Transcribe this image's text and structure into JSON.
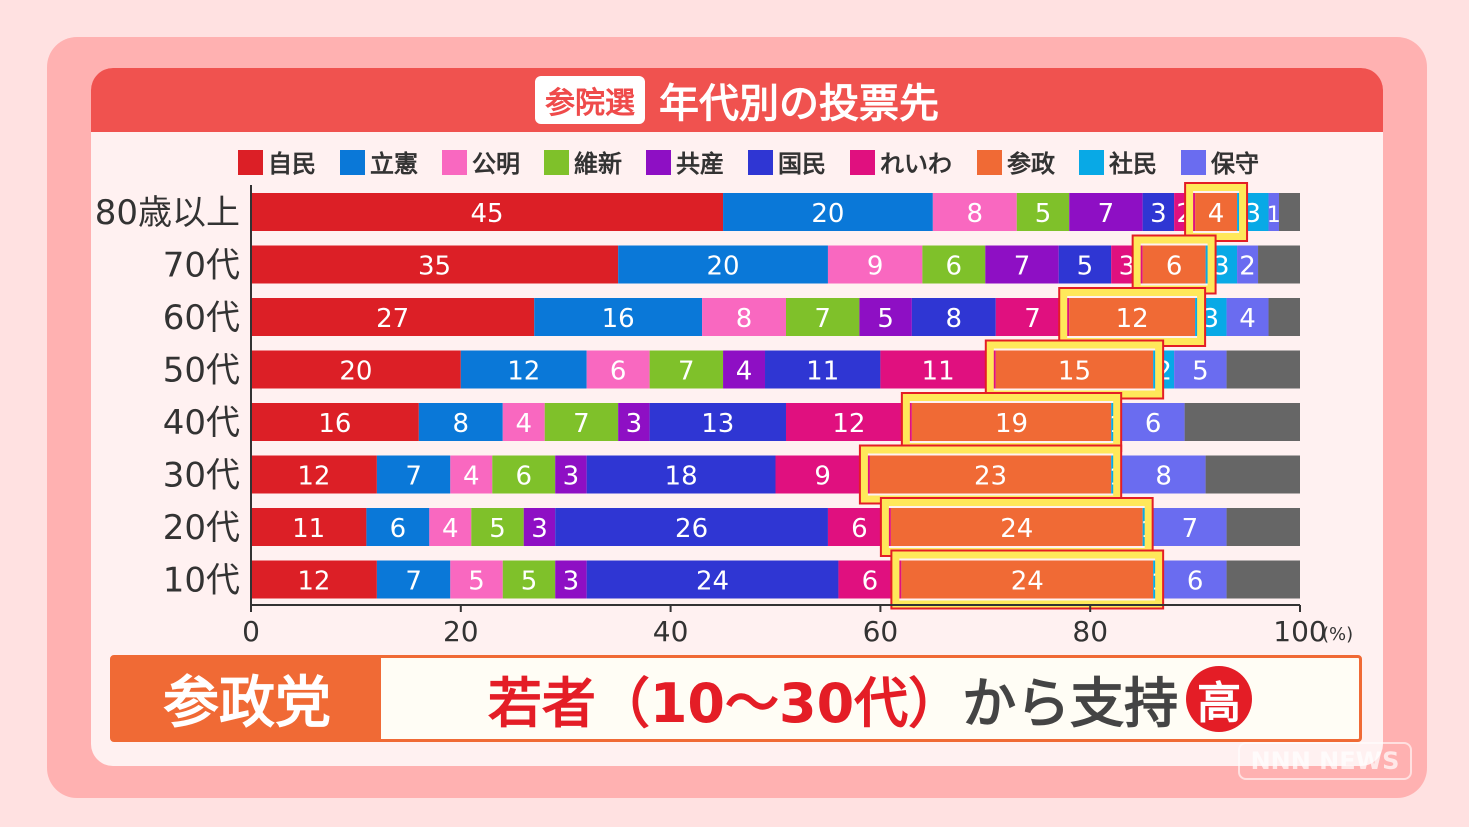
{
  "header": {
    "badge": "参院選",
    "title": "年代別の投票先"
  },
  "banner": {
    "party": "参政党",
    "highlight": "若者（10〜30代）",
    "rest": "から支持",
    "badge": "高"
  },
  "logo": "NNN NEWS",
  "chart_data": {
    "type": "bar",
    "orientation": "horizontal",
    "stacked": true,
    "title": "年代別の投票先",
    "xlabel": "(%)",
    "xlim": [
      0,
      100
    ],
    "xticks": [
      "0",
      "20",
      "40",
      "60",
      "80",
      "100"
    ],
    "categories": [
      "80歳以上",
      "70代",
      "60代",
      "50代",
      "40代",
      "30代",
      "20代",
      "10代"
    ],
    "series": [
      {
        "name": "自民",
        "color": "#dc1f26",
        "values": [
          45,
          35,
          27,
          20,
          16,
          12,
          11,
          12
        ]
      },
      {
        "name": "立憲",
        "color": "#0a78d8",
        "values": [
          20,
          20,
          16,
          12,
          8,
          7,
          6,
          7
        ]
      },
      {
        "name": "公明",
        "color": "#f968c0",
        "values": [
          8,
          9,
          8,
          6,
          4,
          4,
          4,
          5
        ]
      },
      {
        "name": "維新",
        "color": "#7fc12a",
        "values": [
          5,
          6,
          7,
          7,
          7,
          6,
          5,
          5
        ]
      },
      {
        "name": "共産",
        "color": "#8e0fc4",
        "values": [
          7,
          7,
          5,
          4,
          3,
          3,
          3,
          3
        ]
      },
      {
        "name": "国民",
        "color": "#2f36d3",
        "values": [
          3,
          5,
          8,
          11,
          13,
          18,
          26,
          24
        ]
      },
      {
        "name": "れいわ",
        "color": "#e0107f",
        "values": [
          2,
          3,
          7,
          11,
          12,
          9,
          6,
          6
        ]
      },
      {
        "name": "参政",
        "color": "#f06a35",
        "values": [
          4,
          6,
          12,
          15,
          19,
          23,
          24,
          24
        ],
        "highlighted": true
      },
      {
        "name": "社民",
        "color": "#08a9e6",
        "values": [
          3,
          3,
          3,
          2,
          1,
          1,
          1,
          1
        ]
      },
      {
        "name": "保守",
        "color": "#6a6cf0",
        "values": [
          1,
          2,
          4,
          5,
          6,
          8,
          7,
          6
        ]
      },
      {
        "name": "",
        "color": "#666666",
        "values": [
          2,
          4,
          3,
          7,
          11,
          9,
          7,
          7
        ],
        "legend": false
      }
    ]
  }
}
